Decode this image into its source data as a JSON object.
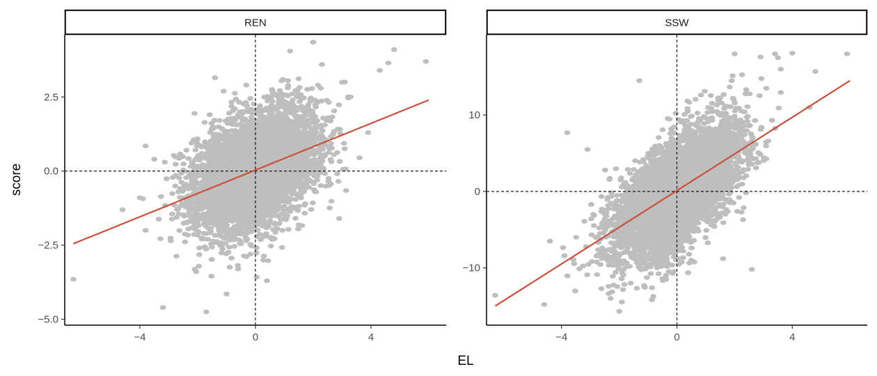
{
  "chart_data": {
    "type": "scatter",
    "xlabel": "EL",
    "ylabel": "score",
    "colors": {
      "points": "#bebebe",
      "fit_line": "#c8503a",
      "reference_lines": "#000000"
    },
    "grid": false,
    "panels": [
      {
        "name": "REN",
        "xlim": [
          -6.6,
          6.6
        ],
        "ylim": [
          -5.2,
          4.6
        ],
        "x_ticks": [
          -4,
          0,
          4
        ],
        "x_tick_labels": [
          "−4",
          "0",
          "4"
        ],
        "y_ticks": [
          -5.0,
          -2.5,
          0.0,
          2.5
        ],
        "y_tick_labels": [
          "−5.0",
          "−2.5",
          "0.0",
          "2.5"
        ],
        "reference_lines": {
          "x": 0,
          "y": 0
        },
        "fit": {
          "x": [
            -6.3,
            6.0
          ],
          "y": [
            -2.45,
            2.4
          ]
        },
        "cloud": {
          "center": [
            0,
            0
          ],
          "sd_x": 1.05,
          "sd_y": 1.0,
          "corr": 0.38,
          "n": 5000
        },
        "outliers": [
          [
            -6.3,
            -3.65
          ],
          [
            -3.2,
            -4.6
          ],
          [
            -1.7,
            -4.75
          ],
          [
            -1.0,
            -4.15
          ],
          [
            -3.8,
            0.85
          ],
          [
            -4.6,
            -1.3
          ],
          [
            -3.8,
            -2.0
          ],
          [
            -4.0,
            -0.9
          ],
          [
            3.9,
            1.3
          ],
          [
            4.3,
            3.4
          ],
          [
            4.6,
            3.65
          ],
          [
            5.9,
            3.7
          ],
          [
            4.8,
            4.1
          ],
          [
            2.0,
            4.35
          ],
          [
            1.2,
            4.05
          ],
          [
            -1.4,
            3.15
          ],
          [
            3.0,
            3.0
          ],
          [
            3.6,
            0.45
          ],
          [
            -0.6,
            -3.3
          ],
          [
            0.4,
            -3.7
          ],
          [
            -1.1,
            2.7
          ],
          [
            2.9,
            -1.6
          ],
          [
            -3.5,
            0.4
          ],
          [
            2.3,
            3.6
          ]
        ]
      },
      {
        "name": "SSW",
        "xlim": [
          -6.6,
          6.6
        ],
        "ylim": [
          -17.5,
          20.5
        ],
        "x_ticks": [
          -4,
          0,
          4
        ],
        "x_tick_labels": [
          "−4",
          "0",
          "4"
        ],
        "y_ticks": [
          -10,
          0,
          10
        ],
        "y_tick_labels": [
          "−10",
          "0",
          "10"
        ],
        "reference_lines": {
          "x": 0,
          "y": 0
        },
        "fit": {
          "x": [
            -6.3,
            6.0
          ],
          "y": [
            -15.0,
            14.5
          ]
        },
        "cloud": {
          "center": [
            0,
            0
          ],
          "sd_x": 1.05,
          "sd_y": 4.3,
          "corr": 0.62,
          "n": 5000
        },
        "outliers": [
          [
            -6.3,
            -13.6
          ],
          [
            -4.6,
            -14.8
          ],
          [
            -3.8,
            7.7
          ],
          [
            -2.0,
            -15.7
          ],
          [
            -2.3,
            -14.0
          ],
          [
            -1.6,
            -12.0
          ],
          [
            5.9,
            18.0
          ],
          [
            4.0,
            18.1
          ],
          [
            3.4,
            18.0
          ],
          [
            2.0,
            18.0
          ],
          [
            1.9,
            14.5
          ],
          [
            4.8,
            15.7
          ],
          [
            3.6,
            16.0
          ],
          [
            2.9,
            17.6
          ],
          [
            1.6,
            -8.8
          ],
          [
            2.6,
            -10.2
          ],
          [
            -0.5,
            -11.4
          ],
          [
            -4.4,
            -6.5
          ],
          [
            -3.1,
            5.5
          ],
          [
            4.6,
            11.0
          ],
          [
            -1.3,
            14.5
          ],
          [
            0.5,
            -9.0
          ],
          [
            -2.9,
            -3.0
          ],
          [
            3.1,
            13.5
          ]
        ]
      }
    ]
  }
}
